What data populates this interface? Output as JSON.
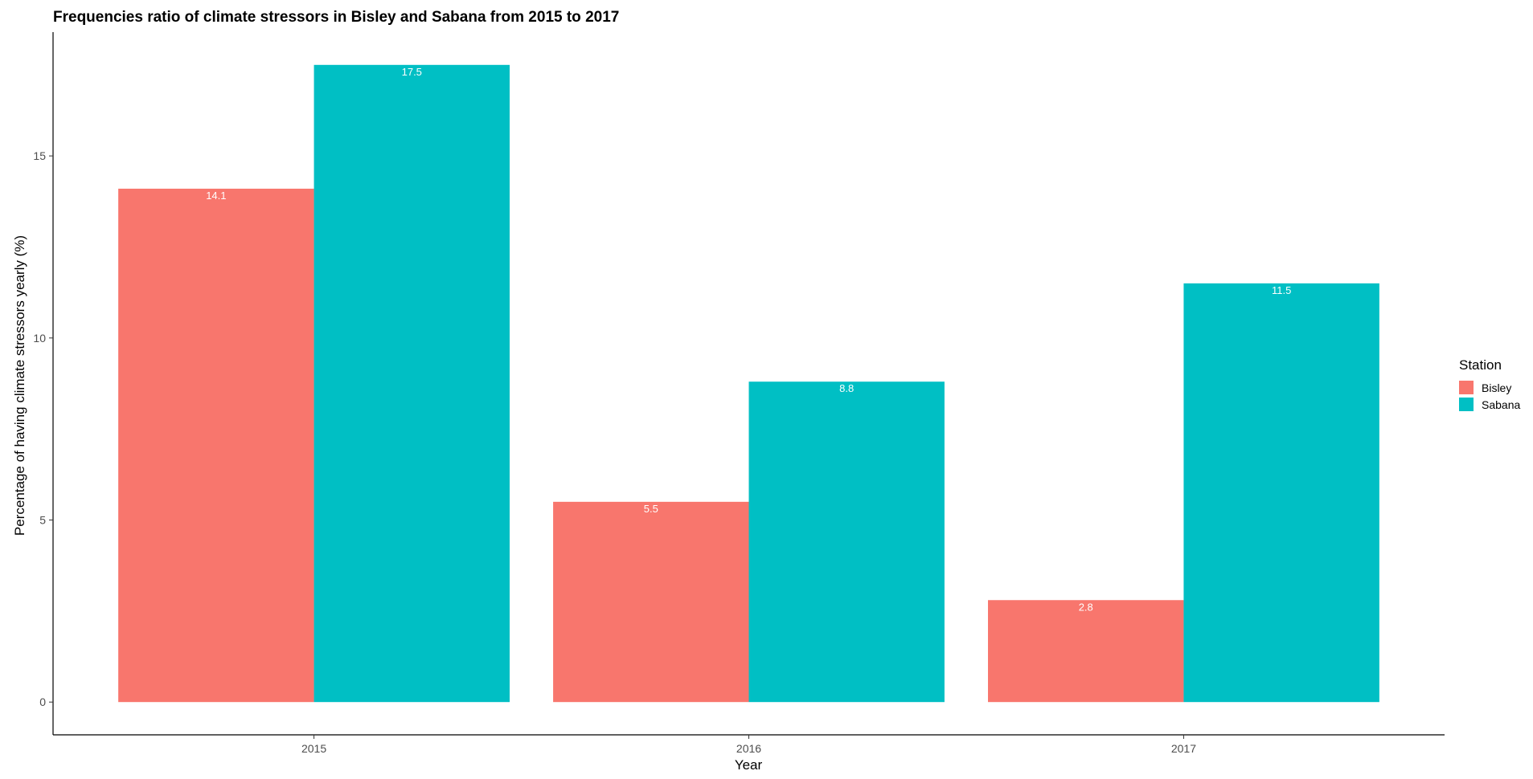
{
  "chart_data": {
    "type": "bar",
    "title": "Frequencies ratio of climate stressors in Bisley and Sabana from 2015 to 2017",
    "xlabel": "Year",
    "ylabel": "Percentage of having climate stressors yearly (%)",
    "categories": [
      "2015",
      "2016",
      "2017"
    ],
    "series": [
      {
        "name": "Bisley",
        "color": "#F8766D",
        "values": [
          14.1,
          5.5,
          2.8
        ]
      },
      {
        "name": "Sabana",
        "color": "#00BFC4",
        "values": [
          17.5,
          8.8,
          11.5
        ]
      }
    ],
    "yticks": [
      0,
      5,
      10,
      15
    ],
    "ylim": [
      -0.9,
      18.4
    ],
    "grid": false,
    "legend": {
      "title": "Station",
      "position": "right"
    }
  }
}
